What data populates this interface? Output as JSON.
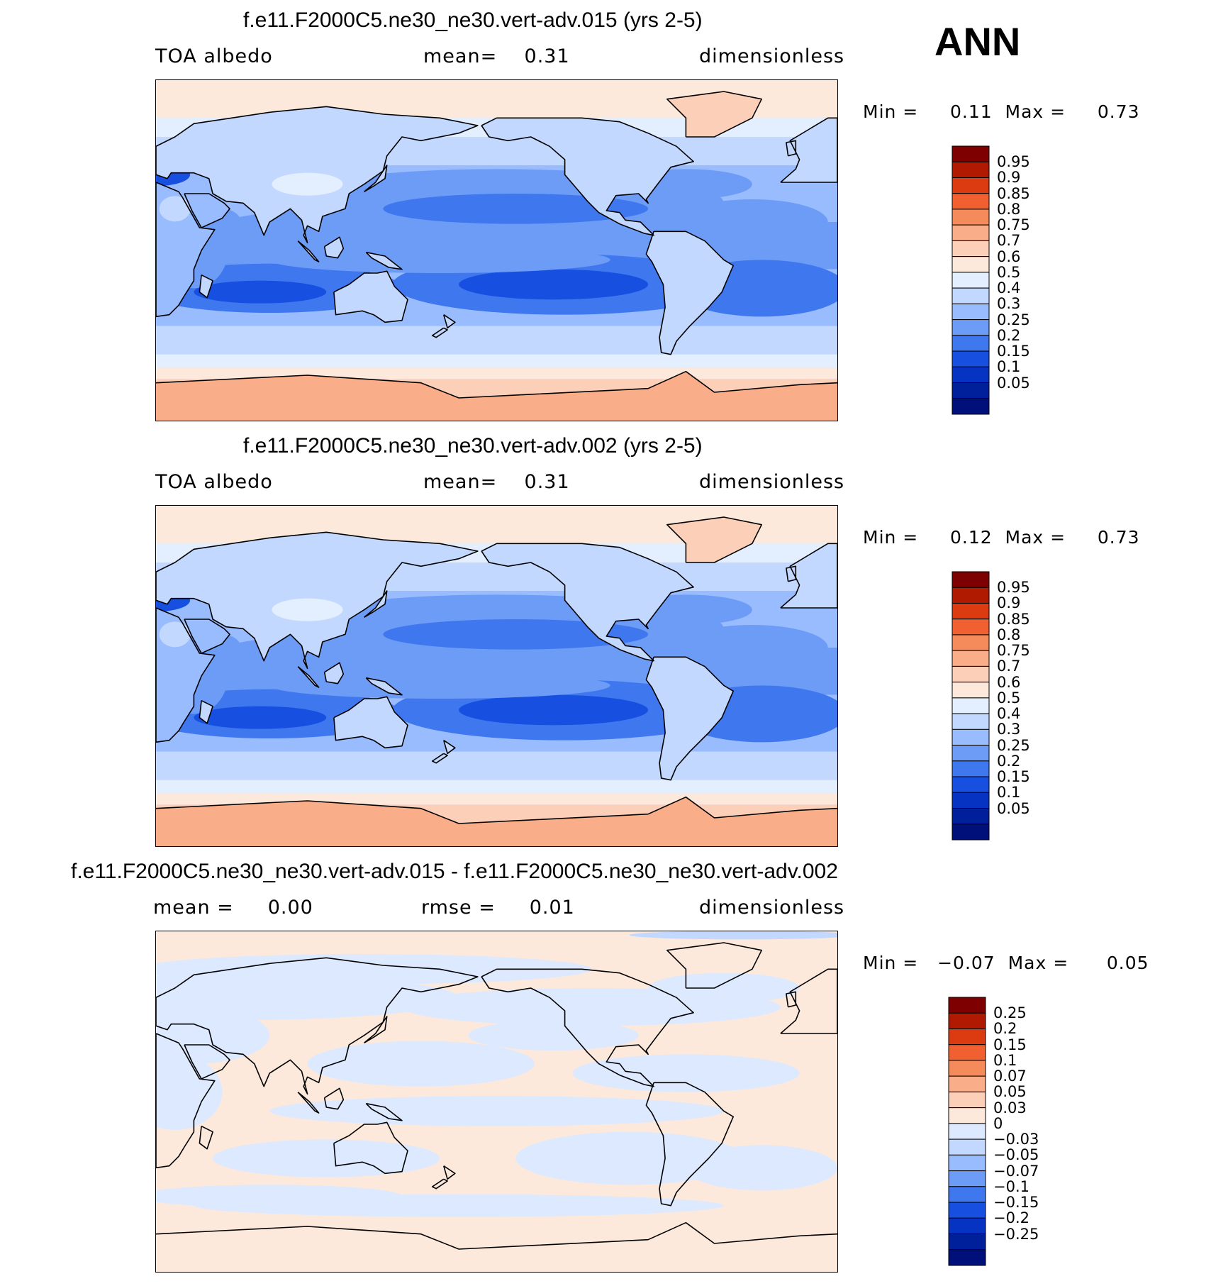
{
  "season": "ANN",
  "panels": [
    {
      "title": "f.e11.F2000C5.ne30_ne30.vert-adv.015 (yrs 2-5)",
      "left_label": "TOA albedo",
      "stat1": "mean=    0.31",
      "units": "dimensionless",
      "minmax": "Min =     0.11  Max =     0.73",
      "colorbar_labels": [
        "0.95",
        "0.9",
        "0.85",
        "0.8",
        "0.75",
        "0.7",
        "0.6",
        "0.5",
        "0.4",
        "0.3",
        "0.25",
        "0.2",
        "0.15",
        "0.1",
        "0.05"
      ],
      "colorbar_colors": [
        "#7f0000",
        "#b01a00",
        "#dc3a10",
        "#f06030",
        "#f58a5a",
        "#f9ad88",
        "#fcd0b8",
        "#fde9dc",
        "#e3efff",
        "#c3d8ff",
        "#99bcff",
        "#6d9cf7",
        "#3f77ef",
        "#1750e0",
        "#0733c2",
        "#001f9a",
        "#00107a"
      ],
      "stats": {
        "mean": 0.31,
        "min": 0.11,
        "max": 0.73
      }
    },
    {
      "title": "f.e11.F2000C5.ne30_ne30.vert-adv.002 (yrs 2-5)",
      "left_label": "TOA albedo",
      "stat1": "mean=    0.31",
      "units": "dimensionless",
      "minmax": "Min =     0.12  Max =     0.73",
      "colorbar_labels": [
        "0.95",
        "0.9",
        "0.85",
        "0.8",
        "0.75",
        "0.7",
        "0.6",
        "0.5",
        "0.4",
        "0.3",
        "0.25",
        "0.2",
        "0.15",
        "0.1",
        "0.05"
      ],
      "colorbar_colors": [
        "#7f0000",
        "#b01a00",
        "#dc3a10",
        "#f06030",
        "#f58a5a",
        "#f9ad88",
        "#fcd0b8",
        "#fde9dc",
        "#e3efff",
        "#c3d8ff",
        "#99bcff",
        "#6d9cf7",
        "#3f77ef",
        "#1750e0",
        "#0733c2",
        "#001f9a",
        "#00107a"
      ],
      "stats": {
        "mean": 0.31,
        "min": 0.12,
        "max": 0.73
      }
    },
    {
      "title": "f.e11.F2000C5.ne30_ne30.vert-adv.015 - f.e11.F2000C5.ne30_ne30.vert-adv.002",
      "left_label": "mean =     0.00",
      "stat1": "rmse =     0.01",
      "units": "dimensionless",
      "minmax": "Min =   −0.07  Max =      0.05",
      "colorbar_labels": [
        "0.25",
        "0.2",
        "0.15",
        "0.1",
        "0.07",
        "0.05",
        "0.03",
        "0",
        "−0.03",
        "−0.05",
        "−0.07",
        "−0.1",
        "−0.15",
        "−0.2",
        "−0.25"
      ],
      "colorbar_colors": [
        "#7f0000",
        "#b01a00",
        "#dc3a10",
        "#f06030",
        "#f58a5a",
        "#f9ad88",
        "#fcd0b8",
        "#fde9dc",
        "#dce9ff",
        "#c3d8ff",
        "#99bcff",
        "#6d9cf7",
        "#3f77ef",
        "#1750e0",
        "#0733c2",
        "#001f9a",
        "#00107a"
      ],
      "stats": {
        "mean": 0.0,
        "rmse": 0.01,
        "min": -0.07,
        "max": 0.05
      }
    }
  ]
}
